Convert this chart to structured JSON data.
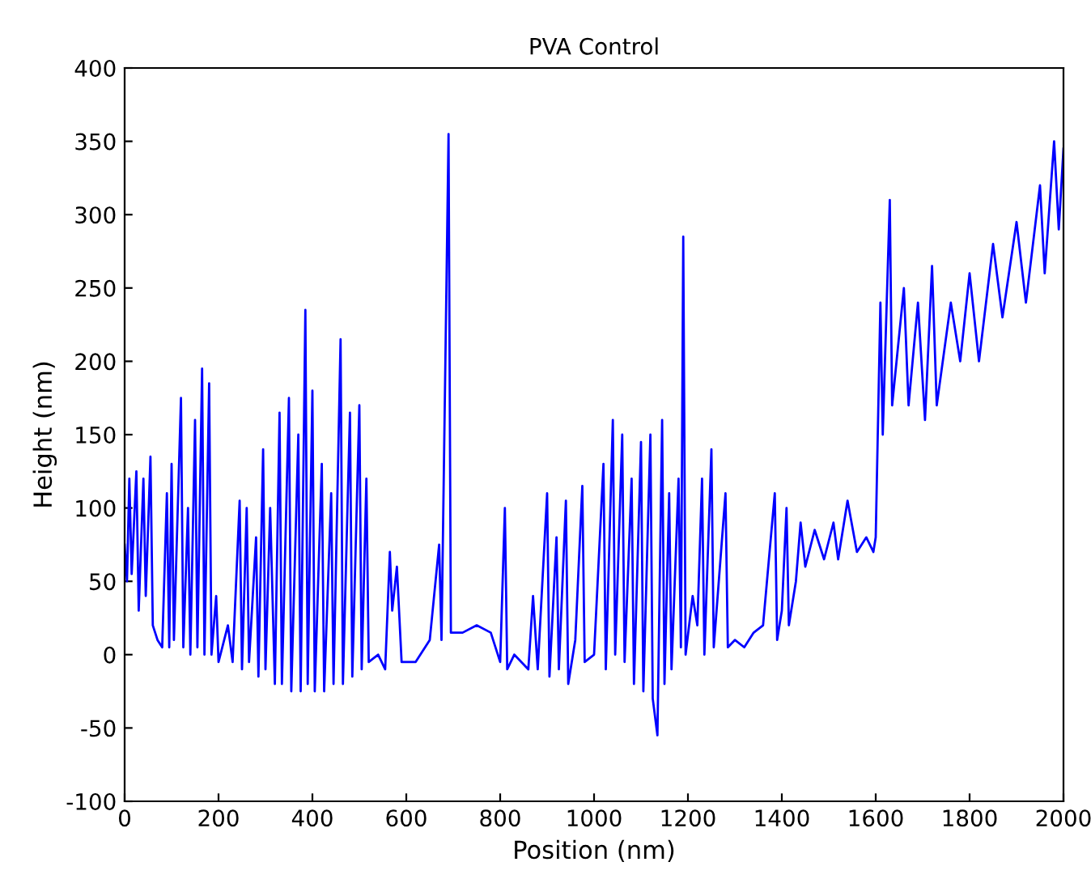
{
  "chart_data": {
    "type": "line",
    "title": "PVA Control",
    "xlabel": "Position (nm)",
    "ylabel": "Height (nm)",
    "xlim": [
      0,
      2000
    ],
    "ylim": [
      -100,
      400
    ],
    "xticks": [
      0,
      200,
      400,
      600,
      800,
      1000,
      1200,
      1400,
      1600,
      1800,
      2000
    ],
    "yticks": [
      -100,
      -50,
      0,
      50,
      100,
      150,
      200,
      250,
      300,
      350,
      400
    ],
    "grid": false,
    "legend": false,
    "marker": "none",
    "line_style": "solid",
    "series": [
      {
        "color": "#0000ff",
        "x": [
          0,
          5,
          10,
          15,
          25,
          30,
          40,
          45,
          55,
          60,
          70,
          80,
          90,
          95,
          100,
          105,
          120,
          125,
          135,
          140,
          150,
          155,
          165,
          170,
          180,
          185,
          195,
          200,
          220,
          230,
          245,
          250,
          260,
          265,
          280,
          285,
          295,
          300,
          310,
          320,
          330,
          335,
          350,
          355,
          370,
          375,
          385,
          390,
          400,
          405,
          420,
          425,
          440,
          445,
          460,
          465,
          480,
          485,
          500,
          505,
          515,
          520,
          540,
          555,
          565,
          570,
          580,
          590,
          620,
          650,
          670,
          675,
          690,
          695,
          720,
          750,
          780,
          800,
          810,
          815,
          830,
          860,
          870,
          880,
          900,
          905,
          920,
          925,
          940,
          945,
          960,
          975,
          980,
          1000,
          1020,
          1025,
          1040,
          1045,
          1060,
          1065,
          1080,
          1085,
          1100,
          1105,
          1120,
          1125,
          1135,
          1145,
          1150,
          1160,
          1165,
          1180,
          1185,
          1190,
          1195,
          1210,
          1220,
          1230,
          1235,
          1250,
          1255,
          1280,
          1285,
          1300,
          1320,
          1340,
          1360,
          1385,
          1390,
          1400,
          1410,
          1415,
          1430,
          1440,
          1450,
          1470,
          1490,
          1510,
          1520,
          1540,
          1560,
          1580,
          1595,
          1600,
          1605,
          1610,
          1615,
          1630,
          1635,
          1660,
          1670,
          1690,
          1705,
          1720,
          1730,
          1760,
          1780,
          1800,
          1820,
          1850,
          1870,
          1900,
          1920,
          1950,
          1960,
          1980,
          1990,
          2000
        ],
        "values": [
          75,
          50,
          120,
          55,
          125,
          30,
          120,
          40,
          135,
          20,
          10,
          5,
          110,
          5,
          130,
          10,
          175,
          5,
          100,
          0,
          160,
          5,
          195,
          0,
          185,
          0,
          40,
          -5,
          20,
          -5,
          105,
          -10,
          100,
          -5,
          80,
          -15,
          140,
          -10,
          100,
          -20,
          165,
          -20,
          175,
          -25,
          150,
          -25,
          235,
          -20,
          180,
          -25,
          130,
          -25,
          110,
          -20,
          215,
          -20,
          165,
          -15,
          170,
          -10,
          120,
          -5,
          0,
          -10,
          70,
          30,
          60,
          -5,
          -5,
          10,
          75,
          10,
          355,
          15,
          15,
          20,
          15,
          -5,
          100,
          -10,
          0,
          -10,
          40,
          -10,
          110,
          -15,
          80,
          -10,
          105,
          -20,
          10,
          115,
          -5,
          0,
          130,
          -10,
          160,
          0,
          150,
          -5,
          120,
          -20,
          145,
          -25,
          150,
          -30,
          -55,
          160,
          -20,
          110,
          -10,
          120,
          5,
          285,
          0,
          40,
          20,
          120,
          0,
          140,
          5,
          110,
          5,
          10,
          5,
          15,
          20,
          110,
          10,
          30,
          100,
          20,
          50,
          90,
          60,
          85,
          65,
          90,
          65,
          105,
          70,
          80,
          70,
          80,
          160,
          240,
          150,
          310,
          170,
          250,
          170,
          240,
          160,
          265,
          170,
          240,
          200,
          260,
          200,
          280,
          230,
          295,
          240,
          320,
          260,
          350,
          290,
          345
        ]
      }
    ]
  }
}
